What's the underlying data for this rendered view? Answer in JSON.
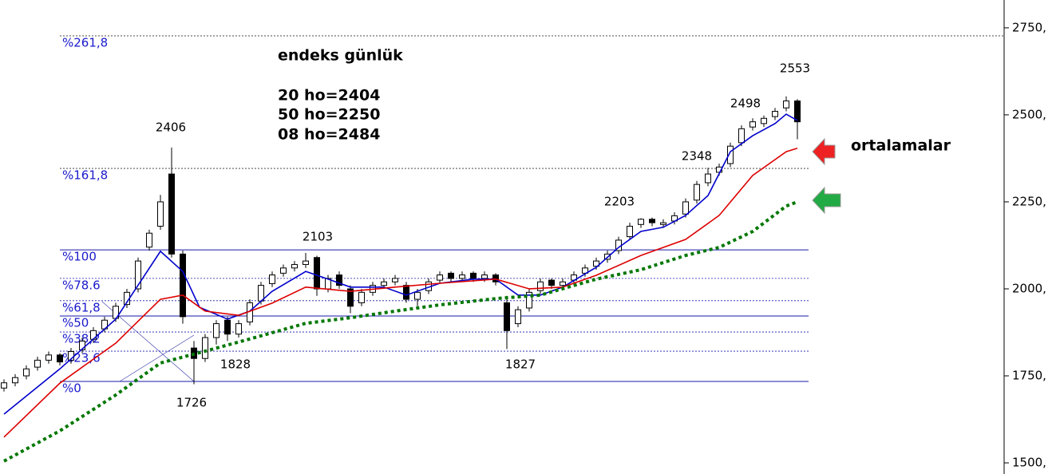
{
  "chart_data": {
    "type": "candlestick",
    "open": [
      1715,
      1730,
      1750,
      1775,
      1795,
      1810,
      1795,
      1825,
      1855,
      1885,
      1915,
      1955,
      2000,
      2120,
      2180,
      2330,
      2100,
      1830,
      1800,
      1860,
      1910,
      1870,
      1905,
      1965,
      2015,
      2045,
      2060,
      2070,
      2090,
      2000,
      2040,
      2000,
      1960,
      1990,
      2010,
      2020,
      2010,
      1970,
      1995,
      2025,
      2045,
      2030,
      2045,
      2030,
      2040,
      1960,
      1900,
      1945,
      1995,
      2025,
      2010,
      2025,
      2045,
      2065,
      2085,
      2110,
      2150,
      2185,
      2200,
      2185,
      2195,
      2215,
      2255,
      2305,
      2335,
      2360,
      2420,
      2465,
      2475,
      2495,
      2520,
      2540
    ],
    "high": [
      1740,
      1755,
      1780,
      1805,
      1820,
      1815,
      1830,
      1860,
      1890,
      1920,
      1960,
      2000,
      2090,
      2170,
      2270,
      2406,
      2110,
      1850,
      1870,
      1910,
      1920,
      1910,
      1970,
      2020,
      2050,
      2070,
      2080,
      2103,
      2095,
      2040,
      2050,
      2010,
      2000,
      2020,
      2030,
      2040,
      2020,
      2000,
      2030,
      2050,
      2050,
      2050,
      2050,
      2050,
      2045,
      1980,
      1950,
      2000,
      2030,
      2030,
      2030,
      2050,
      2070,
      2090,
      2110,
      2150,
      2190,
      2203,
      2205,
      2200,
      2220,
      2260,
      2310,
      2348,
      2360,
      2420,
      2470,
      2490,
      2498,
      2520,
      2553,
      2545
    ],
    "low": [
      1705,
      1720,
      1740,
      1765,
      1785,
      1780,
      1785,
      1815,
      1845,
      1875,
      1905,
      1945,
      1990,
      2110,
      2170,
      2090,
      1900,
      1726,
      1790,
      1840,
      1850,
      1860,
      1895,
      1955,
      2005,
      2035,
      2050,
      2060,
      1980,
      1990,
      2000,
      1930,
      1950,
      1980,
      2000,
      2010,
      1960,
      1950,
      1985,
      2015,
      2020,
      2020,
      2020,
      2020,
      2010,
      1827,
      1890,
      1935,
      1985,
      2000,
      2000,
      2015,
      2035,
      2055,
      2075,
      2100,
      2140,
      2175,
      2180,
      2175,
      2185,
      2205,
      2245,
      2295,
      2325,
      2350,
      2410,
      2455,
      2465,
      2485,
      2510,
      2430
    ],
    "close": [
      1730,
      1745,
      1770,
      1795,
      1810,
      1790,
      1820,
      1850,
      1880,
      1910,
      1950,
      1990,
      2080,
      2160,
      2250,
      2100,
      1920,
      1800,
      1860,
      1900,
      1870,
      1900,
      1960,
      2010,
      2040,
      2060,
      2070,
      2080,
      2000,
      2030,
      2010,
      1950,
      1990,
      2010,
      2020,
      2030,
      1970,
      1990,
      2020,
      2040,
      2030,
      2040,
      2030,
      2040,
      2020,
      1880,
      1940,
      1990,
      2020,
      2010,
      2020,
      2040,
      2060,
      2080,
      2100,
      2140,
      2180,
      2200,
      2190,
      2190,
      2210,
      2250,
      2300,
      2330,
      2350,
      2410,
      2460,
      2480,
      2490,
      2510,
      2540,
      2480
    ],
    "series": [
      {
        "color": "#0000cc",
        "style": "solid",
        "x": [
          0,
          5,
          10,
          14,
          16,
          17.5,
          20,
          22,
          24,
          27,
          29,
          31,
          34,
          36,
          39,
          42,
          44,
          46,
          48,
          50,
          53,
          55,
          57,
          59,
          61,
          63,
          65,
          67,
          69,
          70,
          71
        ],
        "values": [
          1640,
          1770,
          1913,
          2108,
          2050,
          1947,
          1913,
          1936,
          1993,
          2050,
          2028,
          2005,
          2005,
          1982,
          2016,
          2028,
          2028,
          1982,
          1982,
          2005,
          2062,
          2119,
          2165,
          2177,
          2211,
          2268,
          2394,
          2440,
          2475,
          2502,
          2484
        ]
      },
      {
        "color": "#dd0000",
        "style": "solid",
        "x": [
          0,
          5,
          10,
          14,
          16,
          18,
          21,
          24,
          27,
          31,
          35,
          39,
          44,
          47,
          50,
          53,
          57,
          61,
          64,
          67,
          70,
          71
        ],
        "values": [
          1574,
          1729,
          1844,
          1970,
          1982,
          1936,
          1924,
          1959,
          2005,
          1993,
          2005,
          2016,
          2028,
          2000,
          2005,
          2039,
          2096,
          2142,
          2211,
          2326,
          2394,
          2404
        ]
      },
      {
        "color": "#007700",
        "style": "dotted",
        "x": [
          0,
          5,
          10,
          14,
          18,
          22,
          27,
          31,
          35,
          39,
          44,
          48,
          53,
          57,
          61,
          64,
          67,
          70,
          71
        ],
        "values": [
          1505,
          1592,
          1695,
          1787,
          1821,
          1856,
          1901,
          1917,
          1936,
          1954,
          1972,
          1982,
          2028,
          2055,
          2096,
          2119,
          2165,
          2238,
          2250
        ]
      }
    ],
    "fib_levels": [
      {
        "value": 2727,
        "label": "%261,8",
        "style": "dashed-dark"
      },
      {
        "value": 2346,
        "label": "%161,8",
        "style": "dashed-dark"
      },
      {
        "value": 2112,
        "label": "%100",
        "style": "solid"
      },
      {
        "value": 2030,
        "label": "%78.6",
        "style": "dashed"
      },
      {
        "value": 1966,
        "label": "%61,8",
        "style": "dashed"
      },
      {
        "value": 1922,
        "label": "%50",
        "style": "solid"
      },
      {
        "value": 1876,
        "label": "%38,2",
        "style": "dashed"
      },
      {
        "value": 1821,
        "label": "%23,6",
        "style": "dashed"
      },
      {
        "value": 1734,
        "label": "%0",
        "style": "solid"
      }
    ],
    "ylim": [
      1468,
      2830
    ],
    "yticks": [
      {
        "value": 2750,
        "label": "2750,"
      },
      {
        "value": 2500,
        "label": "2500,"
      },
      {
        "value": 2250,
        "label": "2250,"
      },
      {
        "value": 2000,
        "label": "2000,"
      },
      {
        "value": 1750,
        "label": "1750,"
      },
      {
        "value": 1500,
        "label": "1500,"
      }
    ],
    "annotations": [
      "2406",
      "1726",
      "1828",
      "2103",
      "1827",
      "2203",
      "2348",
      "2498",
      "2553"
    ],
    "info_title": "endeks günlük",
    "info_lines": [
      "20 ho=2404",
      "50 ho=2250",
      "08 ho=2484"
    ],
    "side_label": "ortalamalar"
  }
}
